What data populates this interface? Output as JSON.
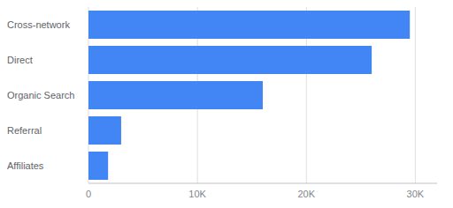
{
  "chart_data": {
    "type": "bar",
    "orientation": "horizontal",
    "categories": [
      "Cross-network",
      "Direct",
      "Organic Search",
      "Referral",
      "Affiliates"
    ],
    "values": [
      29500,
      26000,
      16000,
      3000,
      1800
    ],
    "color": "#4285f4",
    "xlim": [
      0,
      32000
    ],
    "xticks": [
      0,
      {
        "value": 10000,
        "label": "10K"
      },
      {
        "value": 20000,
        "label": "20K"
      },
      {
        "value": 30000,
        "label": "30K"
      }
    ],
    "grid": true
  }
}
